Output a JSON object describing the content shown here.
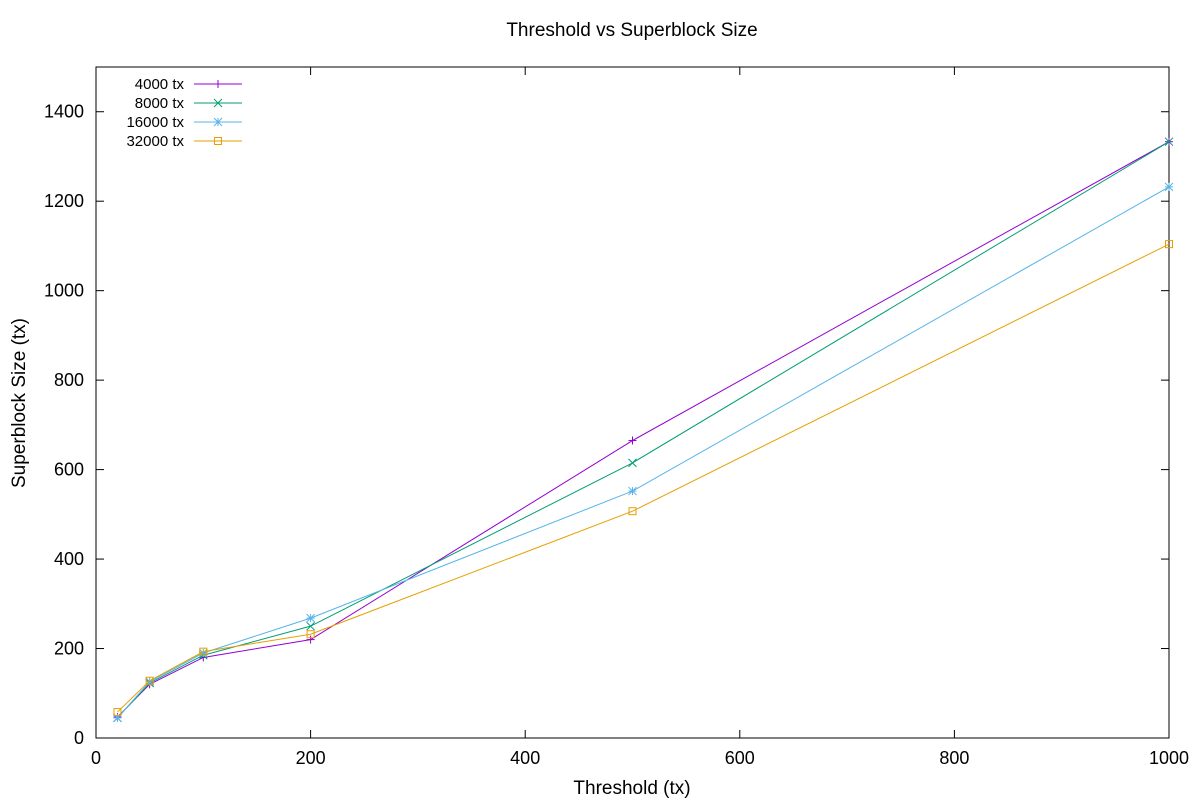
{
  "chart_data": {
    "type": "line",
    "title": "Threshold vs Superblock Size",
    "xlabel": "Threshold (tx)",
    "ylabel": "Superblock Size (tx)",
    "xlim": [
      0,
      1000
    ],
    "ylim": [
      0,
      1500
    ],
    "x_ticks": [
      0,
      200,
      400,
      600,
      800,
      1000
    ],
    "y_ticks": [
      0,
      200,
      400,
      600,
      800,
      1000,
      1200,
      1400
    ],
    "grid": false,
    "legend_position": "top-left",
    "x": [
      20,
      50,
      100,
      200,
      500,
      1000
    ],
    "series": [
      {
        "name": "4000 tx",
        "color": "#9400d3",
        "marker": "plus",
        "values": [
          47,
          120,
          180,
          220,
          665,
          1333
        ]
      },
      {
        "name": "8000 tx",
        "color": "#009e73",
        "marker": "cross",
        "values": [
          45,
          123,
          185,
          250,
          615,
          1333
        ]
      },
      {
        "name": "16000 tx",
        "color": "#56b4e9",
        "marker": "asterisk",
        "values": [
          45,
          126,
          190,
          268,
          552,
          1232
        ]
      },
      {
        "name": "32000 tx",
        "color": "#e69f00",
        "marker": "square",
        "values": [
          58,
          128,
          193,
          232,
          507,
          1104
        ]
      }
    ]
  }
}
